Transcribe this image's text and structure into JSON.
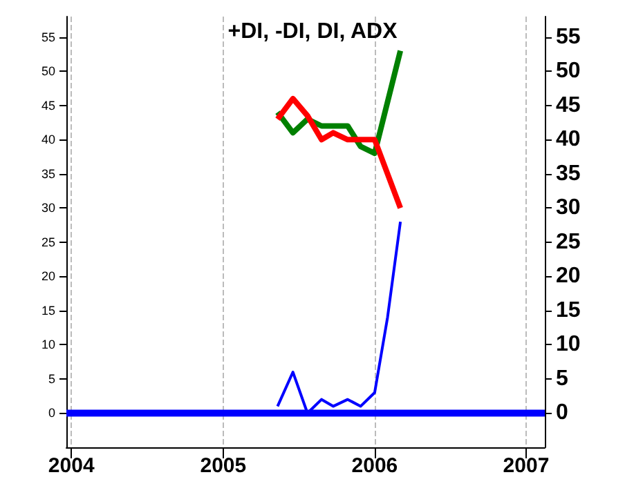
{
  "chart_data": {
    "type": "line",
    "title": "+DI, -DI, DI, ADX",
    "xlim": [
      "2003-12-20",
      "2007-02-15"
    ],
    "xticks": [
      "2004",
      "2005",
      "2006",
      "2007"
    ],
    "ylim": [
      -5,
      58
    ],
    "yticks": [
      0,
      5,
      10,
      15,
      20,
      25,
      30,
      35,
      40,
      45,
      50,
      55
    ],
    "y2lim": [
      -5,
      58
    ],
    "y2ticks": [
      0,
      5,
      10,
      15,
      20,
      25,
      30,
      35,
      40,
      45,
      50,
      55
    ],
    "grid": "x",
    "marker": "none",
    "line_style": "solid",
    "series": [
      {
        "color": "#0000ff",
        "x": [
          "2003-12-20",
          "2007-02-15"
        ],
        "values": [
          0,
          0
        ]
      },
      {
        "color": "#0000ff",
        "x": [
          "2005-05-12",
          "2005-06-18",
          "2005-07-23",
          "2005-08-26",
          "2005-09-23",
          "2005-10-28",
          "2005-11-28",
          "2006-01-01",
          "2006-02-01",
          "2006-03-04"
        ],
        "values": [
          1,
          6,
          0,
          2,
          1,
          2,
          1,
          3,
          14,
          28
        ]
      },
      {
        "color": "#008000",
        "x": [
          "2005-05-12",
          "2005-06-18",
          "2005-07-23",
          "2005-08-26",
          "2005-09-23",
          "2005-10-28",
          "2005-11-28",
          "2006-01-01",
          "2006-03-04"
        ],
        "values": [
          44,
          41,
          43,
          42,
          42,
          42,
          39,
          38,
          53
        ]
      },
      {
        "color": "#ff0000",
        "x": [
          "2005-05-12",
          "2005-06-18",
          "2005-07-23",
          "2005-08-26",
          "2005-09-23",
          "2005-10-28",
          "2005-11-28",
          "2006-01-01",
          "2006-03-04"
        ],
        "values": [
          43,
          46,
          43.5,
          40,
          41,
          40,
          40,
          40,
          30
        ]
      }
    ]
  }
}
